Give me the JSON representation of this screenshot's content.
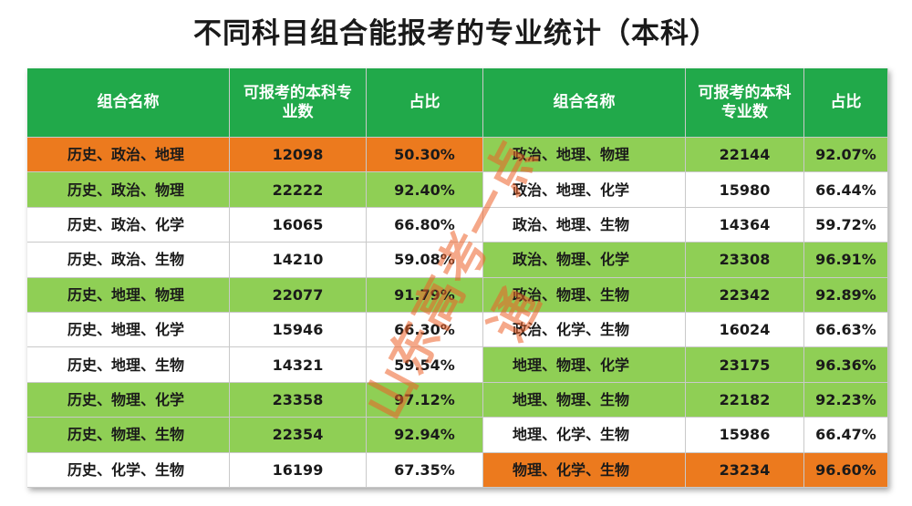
{
  "title": "不同科目组合能报考的专业统计（本科）",
  "headers": {
    "combo": "组合名称",
    "count": "可报考的本科专业数",
    "ratio": "占比"
  },
  "left_rows": [
    {
      "combo": "历史、政治、地理",
      "count": "12098",
      "ratio": "50.30%",
      "color": "#ec7a1e"
    },
    {
      "combo": "历史、政治、物理",
      "count": "22222",
      "ratio": "92.40%",
      "color": "#8fcf55"
    },
    {
      "combo": "历史、政治、化学",
      "count": "16065",
      "ratio": "66.80%",
      "color": "#ffffff"
    },
    {
      "combo": "历史、政治、生物",
      "count": "14210",
      "ratio": "59.08%",
      "color": "#ffffff"
    },
    {
      "combo": "历史、地理、物理",
      "count": "22077",
      "ratio": "91.79%",
      "color": "#8fcf55"
    },
    {
      "combo": "历史、地理、化学",
      "count": "15946",
      "ratio": "66.30%",
      "color": "#ffffff"
    },
    {
      "combo": "历史、地理、生物",
      "count": "14321",
      "ratio": "59.54%",
      "color": "#ffffff"
    },
    {
      "combo": "历史、物理、化学",
      "count": "23358",
      "ratio": "97.12%",
      "color": "#8fcf55"
    },
    {
      "combo": "历史、物理、生物",
      "count": "22354",
      "ratio": "92.94%",
      "color": "#8fcf55"
    },
    {
      "combo": "历史、化学、生物",
      "count": "16199",
      "ratio": "67.35%",
      "color": "#ffffff"
    }
  ],
  "right_rows": [
    {
      "combo": "政治、地理、物理",
      "count": "22144",
      "ratio": "92.07%",
      "color": "#8fcf55"
    },
    {
      "combo": "政治、地理、化学",
      "count": "15980",
      "ratio": "66.44%",
      "color": "#ffffff"
    },
    {
      "combo": "政治、地理、生物",
      "count": "14364",
      "ratio": "59.72%",
      "color": "#ffffff"
    },
    {
      "combo": "政治、物理、化学",
      "count": "23308",
      "ratio": "96.91%",
      "color": "#8fcf55"
    },
    {
      "combo": "政治、物理、生物",
      "count": "22342",
      "ratio": "92.89%",
      "color": "#8fcf55"
    },
    {
      "combo": "政治、化学、生物",
      "count": "16024",
      "ratio": "66.63%",
      "color": "#ffffff"
    },
    {
      "combo": "地理、物理、化学",
      "count": "23175",
      "ratio": "96.36%",
      "color": "#8fcf55"
    },
    {
      "combo": "地理、物理、生物",
      "count": "22182",
      "ratio": "92.23%",
      "color": "#8fcf55"
    },
    {
      "combo": "地理、化学、生物",
      "count": "15986",
      "ratio": "66.47%",
      "color": "#ffffff"
    },
    {
      "combo": "物理、化学、生物",
      "count": "23234",
      "ratio": "96.60%",
      "color": "#ec7a1e"
    }
  ],
  "watermark": "山东高考一点通",
  "colors": {
    "header": "#21a94a",
    "highlight_green": "#8fcf55",
    "highlight_orange": "#ec7a1e",
    "plain": "#ffffff"
  }
}
